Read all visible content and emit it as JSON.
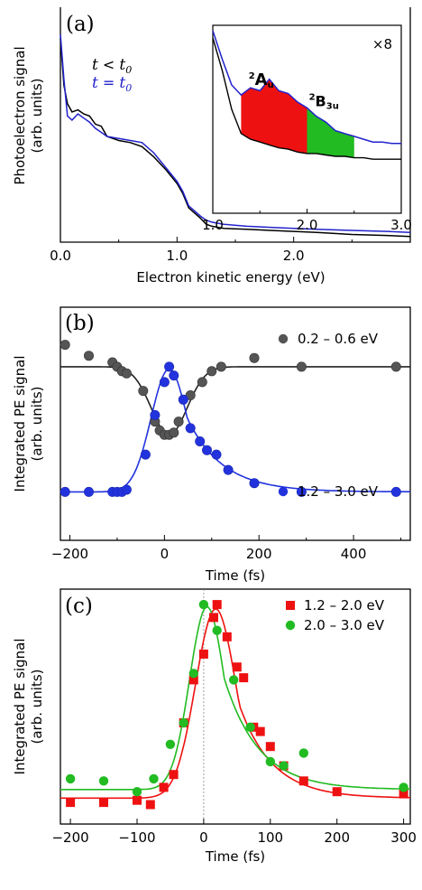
{
  "chart_data": [
    {
      "panel": "(a)",
      "type": "line",
      "xlabel": "Electron kinetic energy (eV)",
      "ylabel": [
        "Photoelectron signal",
        "(arb. units)"
      ],
      "xlim": [
        0,
        3
      ],
      "ylim": [
        0,
        1
      ],
      "xticks": [
        "0.0",
        "1.0",
        "2.0"
      ],
      "legend": {
        "placement": "top-left",
        "entries": [
          {
            "sym": "t",
            "op": " < ",
            "sub": "0",
            "color": "#000000"
          },
          {
            "sym": "t",
            "op": " = ",
            "sub": "0",
            "color": "#2222cc"
          }
        ]
      },
      "series": [
        {
          "color": "#000000",
          "x": [
            0.0,
            0.03,
            0.06,
            0.1,
            0.15,
            0.2,
            0.25,
            0.3,
            0.35,
            0.4,
            0.5,
            0.6,
            0.7,
            0.8,
            0.9,
            1.0,
            1.05,
            1.1,
            1.2,
            1.25,
            1.3,
            1.4,
            1.6,
            1.8,
            2.0,
            2.2,
            2.5,
            2.8,
            3.0
          ],
          "y": [
            0.98,
            0.75,
            0.66,
            0.62,
            0.63,
            0.61,
            0.6,
            0.56,
            0.55,
            0.5,
            0.48,
            0.47,
            0.45,
            0.4,
            0.34,
            0.27,
            0.22,
            0.15,
            0.1,
            0.07,
            0.06,
            0.05,
            0.045,
            0.04,
            0.035,
            0.03,
            0.02,
            0.015,
            0.01
          ]
        },
        {
          "color": "#2222cc",
          "x": [
            0.0,
            0.03,
            0.06,
            0.1,
            0.15,
            0.2,
            0.25,
            0.3,
            0.35,
            0.4,
            0.5,
            0.6,
            0.7,
            0.8,
            0.9,
            1.0,
            1.05,
            1.1,
            1.2,
            1.25,
            1.3,
            1.4,
            1.6,
            1.8,
            2.0,
            2.2,
            2.5,
            2.8,
            3.0
          ],
          "y": [
            1.0,
            0.78,
            0.6,
            0.58,
            0.61,
            0.59,
            0.57,
            0.54,
            0.52,
            0.5,
            0.49,
            0.48,
            0.47,
            0.42,
            0.35,
            0.28,
            0.23,
            0.16,
            0.11,
            0.09,
            0.08,
            0.07,
            0.06,
            0.055,
            0.05,
            0.045,
            0.04,
            0.035,
            0.03
          ]
        }
      ],
      "inset": {
        "xlim": [
          1.0,
          3.0
        ],
        "xticks": [
          "1.0",
          "2.0",
          "3.0"
        ],
        "multiplier": "×8",
        "bands": [
          {
            "base": "2",
            "main": "A",
            "sub": "u",
            "color": "#ee1111",
            "range": [
              1.3,
              2.0
            ]
          },
          {
            "base": "2",
            "main": "B",
            "sub": "3u",
            "color": "#22bb22",
            "range": [
              2.0,
              2.5
            ]
          }
        ],
        "black_x": [
          1.0,
          1.1,
          1.2,
          1.3,
          1.4,
          1.5,
          1.6,
          1.7,
          1.8,
          1.9,
          2.0,
          2.1,
          2.2,
          2.3,
          2.4,
          2.5,
          2.6,
          2.7,
          2.8,
          2.9,
          3.0
        ],
        "black_y": [
          0.95,
          0.72,
          0.45,
          0.28,
          0.24,
          0.22,
          0.2,
          0.18,
          0.17,
          0.15,
          0.14,
          0.14,
          0.13,
          0.12,
          0.12,
          0.11,
          0.11,
          0.1,
          0.1,
          0.1,
          0.1
        ],
        "blue_x": [
          1.0,
          1.1,
          1.2,
          1.3,
          1.4,
          1.5,
          1.6,
          1.7,
          1.8,
          1.9,
          2.0,
          2.1,
          2.2,
          2.3,
          2.4,
          2.5,
          2.6,
          2.7,
          2.8,
          2.9,
          3.0
        ],
        "blue_y": [
          1.0,
          0.8,
          0.62,
          0.55,
          0.6,
          0.58,
          0.66,
          0.58,
          0.56,
          0.5,
          0.46,
          0.4,
          0.36,
          0.3,
          0.28,
          0.26,
          0.24,
          0.22,
          0.22,
          0.21,
          0.21
        ]
      }
    },
    {
      "panel": "(b)",
      "type": "scatter",
      "xlabel": "Time (fs)",
      "ylabel": [
        "Integrated PE signal",
        "(arb. units)"
      ],
      "xlim": [
        -220,
        520
      ],
      "ylim": [
        0,
        1
      ],
      "xticks": [
        -200,
        0,
        200,
        400
      ],
      "series": [
        {
          "name": "0.2 – 0.6 eV",
          "color": "#555555",
          "points": [
            [
              -210,
              0.87
            ],
            [
              -160,
              0.82
            ],
            [
              -110,
              0.79
            ],
            [
              -100,
              0.77
            ],
            [
              -90,
              0.75
            ],
            [
              -80,
              0.74
            ],
            [
              -45,
              0.66
            ],
            [
              -20,
              0.52
            ],
            [
              -10,
              0.48
            ],
            [
              0,
              0.46
            ],
            [
              10,
              0.46
            ],
            [
              20,
              0.47
            ],
            [
              30,
              0.52
            ],
            [
              55,
              0.64
            ],
            [
              80,
              0.7
            ],
            [
              100,
              0.75
            ],
            [
              120,
              0.77
            ],
            [
              190,
              0.81
            ],
            [
              290,
              0.77
            ],
            [
              490,
              0.77
            ]
          ],
          "fit": {
            "baseline": 0.77,
            "amp": -0.31,
            "center": 10,
            "sigma": 38
          }
        },
        {
          "name": "1.2 – 3.0 eV",
          "color": "#2233dd",
          "points": [
            [
              -210,
              0.2
            ],
            [
              -160,
              0.2
            ],
            [
              -110,
              0.2
            ],
            [
              -100,
              0.2
            ],
            [
              -90,
              0.2
            ],
            [
              -80,
              0.21
            ],
            [
              -40,
              0.37
            ],
            [
              -20,
              0.55
            ],
            [
              0,
              0.7
            ],
            [
              10,
              0.77
            ],
            [
              20,
              0.73
            ],
            [
              40,
              0.62
            ],
            [
              55,
              0.49
            ],
            [
              75,
              0.43
            ],
            [
              90,
              0.39
            ],
            [
              110,
              0.37
            ],
            [
              135,
              0.3
            ],
            [
              190,
              0.24
            ],
            [
              290,
              0.2
            ],
            [
              490,
              0.2
            ]
          ],
          "fit": {
            "baseline": 0.2,
            "amp": 0.56,
            "center": 10,
            "sigma": 38,
            "tail": 75
          }
        }
      ]
    },
    {
      "panel": "(c)",
      "type": "scatter",
      "xlabel": "Time (fs)",
      "ylabel": [
        "Integrated PE signal",
        "(arb. units)"
      ],
      "xlim": [
        -215,
        310
      ],
      "ylim": [
        0,
        1
      ],
      "xticks": [
        -200,
        -100,
        0,
        100,
        200,
        300
      ],
      "vline": 0,
      "series": [
        {
          "name": "1.2 – 2.0 eV",
          "color": "#ee1111",
          "marker": "square",
          "points": [
            [
              -200,
              0.05
            ],
            [
              -150,
              0.05
            ],
            [
              -100,
              0.06
            ],
            [
              -80,
              0.04
            ],
            [
              -60,
              0.12
            ],
            [
              -45,
              0.18
            ],
            [
              -30,
              0.42
            ],
            [
              -15,
              0.62
            ],
            [
              0,
              0.74
            ],
            [
              15,
              0.91
            ],
            [
              20,
              0.97
            ],
            [
              35,
              0.82
            ],
            [
              50,
              0.68
            ],
            [
              60,
              0.63
            ],
            [
              75,
              0.4
            ],
            [
              85,
              0.38
            ],
            [
              100,
              0.31
            ],
            [
              120,
              0.22
            ],
            [
              150,
              0.15
            ],
            [
              200,
              0.1
            ],
            [
              300,
              0.09
            ]
          ],
          "fit": {
            "baseline": 0.07,
            "amp": 0.88,
            "center": 18,
            "sigma": 30,
            "tail": 50
          }
        },
        {
          "name": "2.0 – 3.0 eV",
          "color": "#22bb22",
          "marker": "circle",
          "points": [
            [
              -200,
              0.16
            ],
            [
              -150,
              0.15
            ],
            [
              -100,
              0.1
            ],
            [
              -75,
              0.16
            ],
            [
              -50,
              0.32
            ],
            [
              -30,
              0.42
            ],
            [
              -15,
              0.65
            ],
            [
              0,
              0.97
            ],
            [
              20,
              0.85
            ],
            [
              45,
              0.62
            ],
            [
              70,
              0.4
            ],
            [
              100,
              0.24
            ],
            [
              120,
              0.22
            ],
            [
              150,
              0.28
            ],
            [
              300,
              0.12
            ]
          ],
          "fit": {
            "baseline": 0.11,
            "amp": 0.85,
            "center": 5,
            "sigma": 26,
            "tail": 52
          }
        }
      ]
    }
  ]
}
